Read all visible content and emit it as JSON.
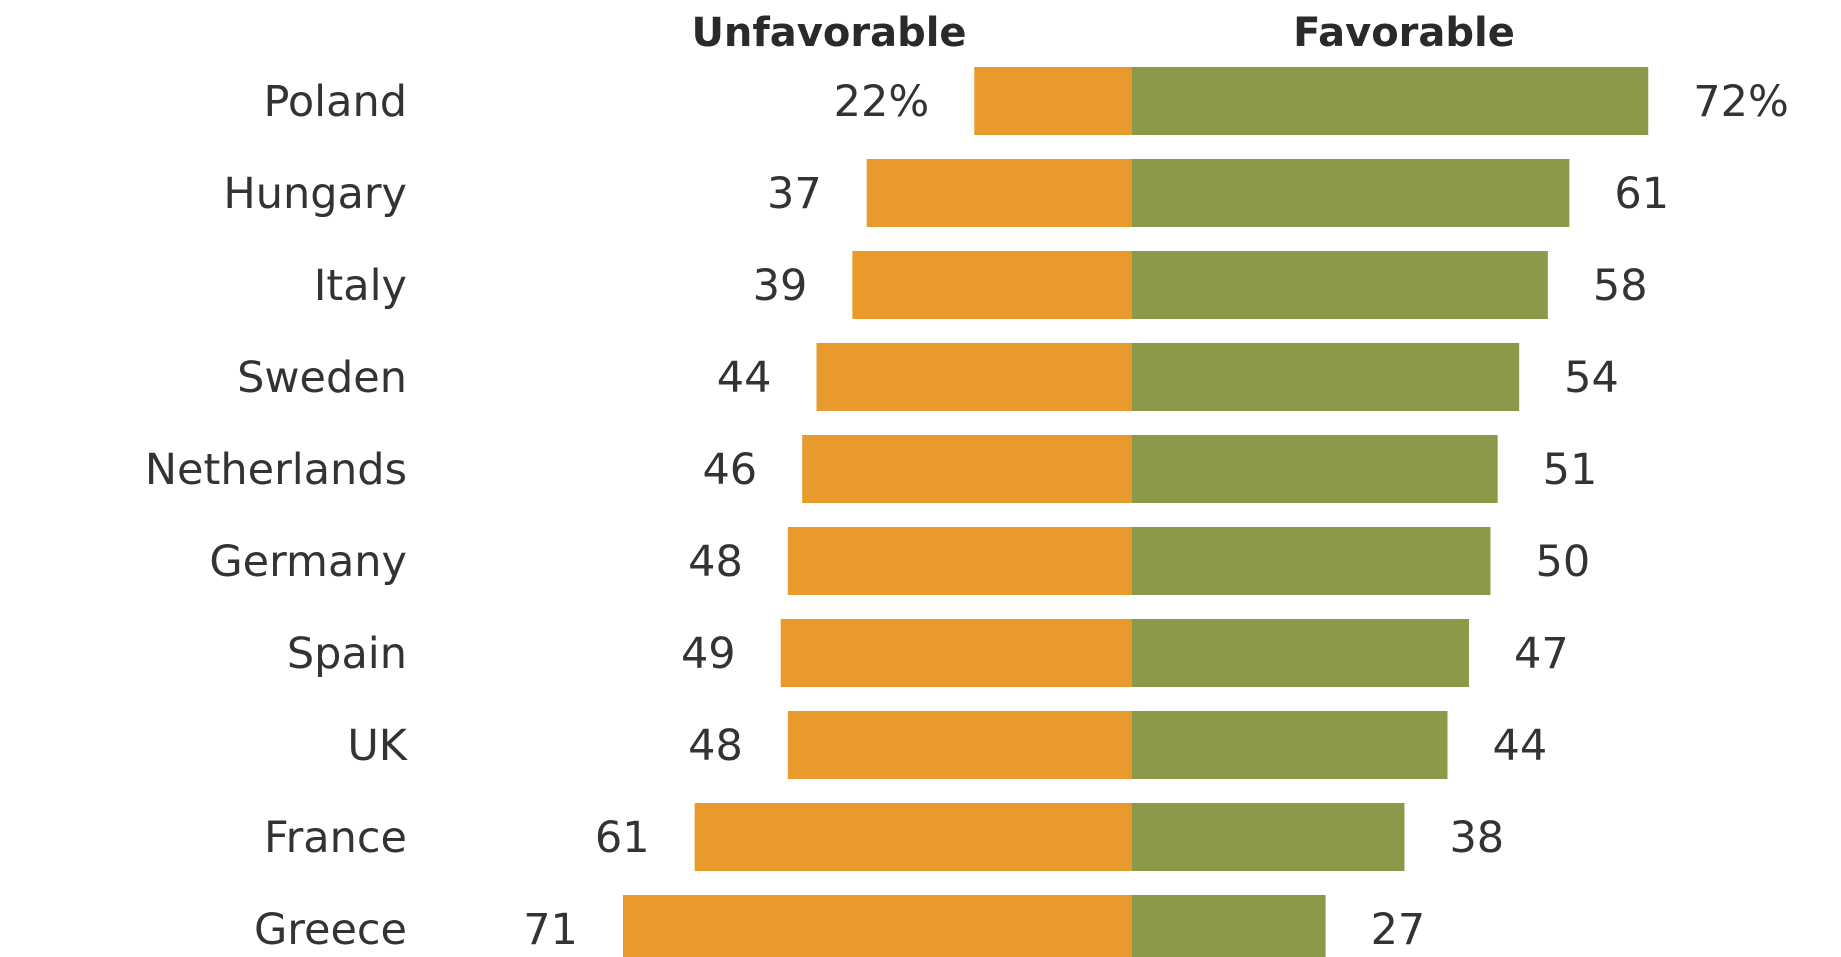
{
  "chart_data": {
    "type": "bar",
    "orientation": "diverging-horizontal",
    "categories": [
      "Poland",
      "Hungary",
      "Italy",
      "Sweden",
      "Netherlands",
      "Germany",
      "Spain",
      "UK",
      "France",
      "Greece"
    ],
    "series": [
      {
        "name": "Unfavorable",
        "color": "#e89a2c",
        "values": [
          22,
          37,
          39,
          44,
          46,
          48,
          49,
          48,
          61,
          71
        ],
        "labels": [
          "22%",
          "37",
          "39",
          "44",
          "46",
          "48",
          "49",
          "48",
          "61",
          "71"
        ]
      },
      {
        "name": "Favorable",
        "color": "#8a9a48",
        "values": [
          72,
          61,
          58,
          54,
          51,
          50,
          47,
          44,
          38,
          27
        ],
        "labels": [
          "72%",
          "61",
          "58",
          "54",
          "51",
          "50",
          "47",
          "44",
          "38",
          "27"
        ]
      }
    ],
    "title": "",
    "xlabel": "",
    "ylabel": "",
    "grid": false,
    "legend": "top"
  }
}
